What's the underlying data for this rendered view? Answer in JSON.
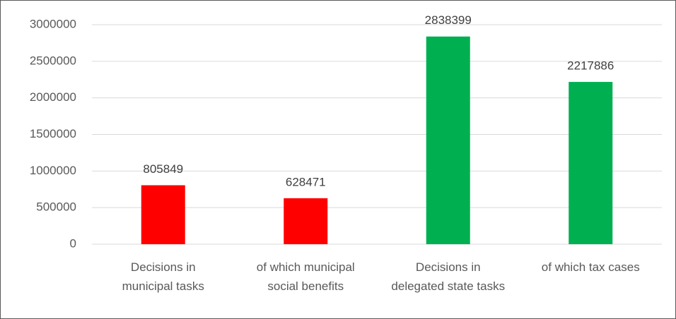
{
  "chart_data": {
    "type": "bar",
    "categories": [
      "Decisions in municipal tasks",
      "of which municipal social benefits",
      "Decisions in delegated state tasks",
      "of which tax cases"
    ],
    "values": [
      805849,
      628471,
      2838399,
      2217886
    ],
    "colors": [
      "#ff0000",
      "#ff0000",
      "#00b050",
      "#00b050"
    ],
    "ylim": [
      0,
      3000000
    ],
    "yticks": [
      0,
      500000,
      1000000,
      1500000,
      2000000,
      2500000,
      3000000
    ],
    "grid": true
  }
}
